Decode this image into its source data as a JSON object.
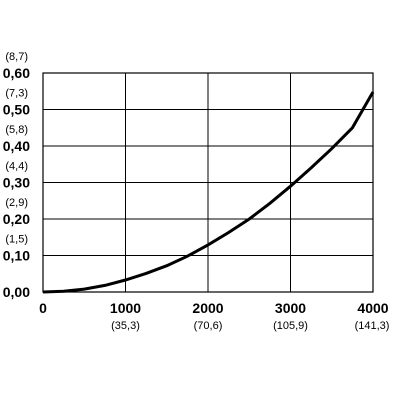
{
  "chart_data": {
    "type": "line",
    "title": "",
    "xlabel": "",
    "ylabel": "",
    "xlim": [
      0,
      4000
    ],
    "ylim": [
      0,
      0.6
    ],
    "grid": true,
    "x_ticks": [
      {
        "value": 0,
        "label": "0",
        "sublabel": ""
      },
      {
        "value": 1000,
        "label": "1000",
        "sublabel": "(35,3)"
      },
      {
        "value": 2000,
        "label": "2000",
        "sublabel": "(70,6)"
      },
      {
        "value": 3000,
        "label": "3000",
        "sublabel": "(105,9)"
      },
      {
        "value": 4000,
        "label": "4000",
        "sublabel": "(141,3)"
      }
    ],
    "y_ticks": [
      {
        "value": 0.0,
        "label": "0,00",
        "sublabel": ""
      },
      {
        "value": 0.1,
        "label": "0,10",
        "sublabel": "(1,5)"
      },
      {
        "value": 0.2,
        "label": "0,20",
        "sublabel": "(2,9)"
      },
      {
        "value": 0.3,
        "label": "0,30",
        "sublabel": "(4,4)"
      },
      {
        "value": 0.4,
        "label": "0,40",
        "sublabel": "(5,8)"
      },
      {
        "value": 0.5,
        "label": "0,50",
        "sublabel": "(7,3)"
      },
      {
        "value": 0.6,
        "label": "0,60",
        "sublabel": "(8,7)"
      }
    ],
    "series": [
      {
        "color": "#000000",
        "x": [
          0,
          250,
          500,
          750,
          1000,
          1250,
          1500,
          1750,
          2000,
          2250,
          2500,
          2750,
          3000,
          3250,
          3500,
          3750,
          4000
        ],
        "y": [
          0.0,
          0.002,
          0.008,
          0.018,
          0.033,
          0.051,
          0.072,
          0.098,
          0.129,
          0.163,
          0.2,
          0.243,
          0.29,
          0.34,
          0.393,
          0.45,
          0.548
        ]
      }
    ]
  }
}
